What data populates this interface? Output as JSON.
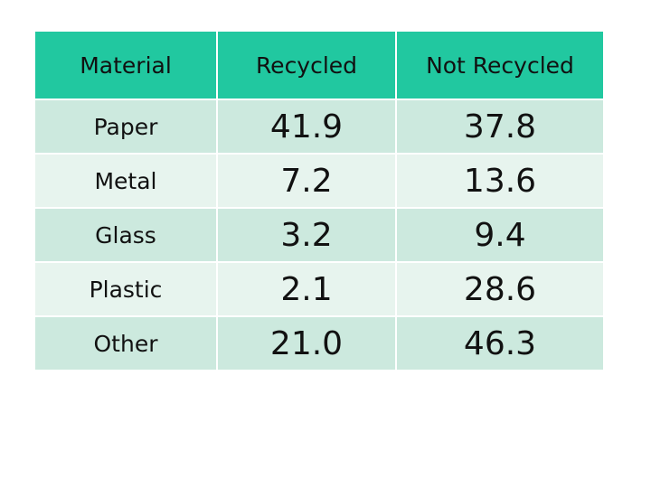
{
  "table": {
    "header": [
      "Material",
      "Recycled",
      "Not Recycled"
    ],
    "rows": [
      [
        "Paper",
        "41.9",
        "37.8"
      ],
      [
        "Metal",
        "7.2",
        "13.6"
      ],
      [
        "Glass",
        "3.2",
        "9.4"
      ],
      [
        "Plastic",
        "2.1",
        "28.6"
      ],
      [
        "Other",
        "21.0",
        "46.3"
      ]
    ]
  }
}
